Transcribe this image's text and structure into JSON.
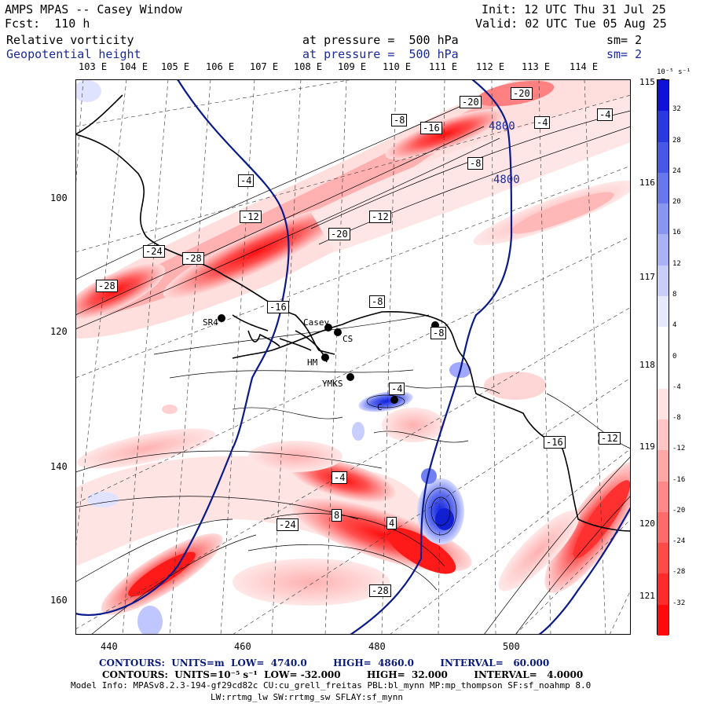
{
  "header": {
    "model_title": "AMPS MPAS -- Casey Window",
    "forecast": "Fcst:  110 h",
    "init": "Init: 12 UTC Thu 31 Jul 25",
    "valid": "Valid: 02 UTC Tue 05 Aug 25",
    "field1": "Relative vorticity",
    "field1_pressure": "at pressure =  500 hPa",
    "field1_sm": "sm= 2",
    "field2": "Geopotential height",
    "field2_pressure": "at pressure =  500 hPa",
    "field2_sm": "sm= 2"
  },
  "longitude_top_labels": [
    "103 E",
    "104 E",
    "105 E",
    "106 E",
    "107 E",
    "108 E",
    "109 E",
    "110 E",
    "111 E",
    "112 E",
    "113 E",
    "114 E"
  ],
  "longitude_right_labels": [
    "115 E",
    "116 E",
    "117 E",
    "118 E",
    "119 E",
    "120 E",
    "121 E"
  ],
  "y_axis_labels": [
    "100",
    "120",
    "140",
    "160"
  ],
  "x_axis_labels": [
    "440",
    "460",
    "480",
    "500"
  ],
  "colorbar": {
    "unit": "10⁻⁵ s⁻¹",
    "tick_labels": [
      "32",
      "28",
      "24",
      "20",
      "16",
      "12",
      "8",
      "4",
      "0",
      "-4",
      "-8",
      "-12",
      "-16",
      "-20",
      "-24",
      "-28",
      "-32"
    ]
  },
  "stations": [
    "Casey",
    "CS",
    "HM",
    "YMKS",
    "SR4",
    "C"
  ],
  "contour_labels": [
    "4800",
    "4800",
    "-20",
    "-20",
    "-16",
    "-8",
    "-4",
    "-4",
    "-4",
    "-8",
    "-12",
    "-12",
    "-20",
    "-24",
    "-28",
    "-28",
    "-16",
    "-8",
    "-8",
    "-4",
    "-4",
    "4",
    "8",
    "-24",
    "-28",
    "-16",
    "-12"
  ],
  "footer": {
    "height_contours": "CONTOURS:  UNITS=m  LOW=  4740.0        HIGH=  4860.0        INTERVAL=   60.000",
    "vort_contours": "CONTOURS:  UNITS=10⁻⁵ s⁻¹  LOW= -32.000        HIGH=  32.000        INTERVAL=   4.0000",
    "model_info": "Model Info: MPASv8.2.3-194-gf29cd82c CU:cu_grell_freitas PBL:bl_mynn MP:mp_thompson SF:sf_noahmp 8.0",
    "model_info2": "LW:rrtmg_lw SW:rrtmg_sw SFLAY:sf_mynn"
  },
  "colors": {
    "pos_vort": "#2b3fe0",
    "neg_vort": "#ff1a1a",
    "height_line": "#0a1a8a"
  }
}
